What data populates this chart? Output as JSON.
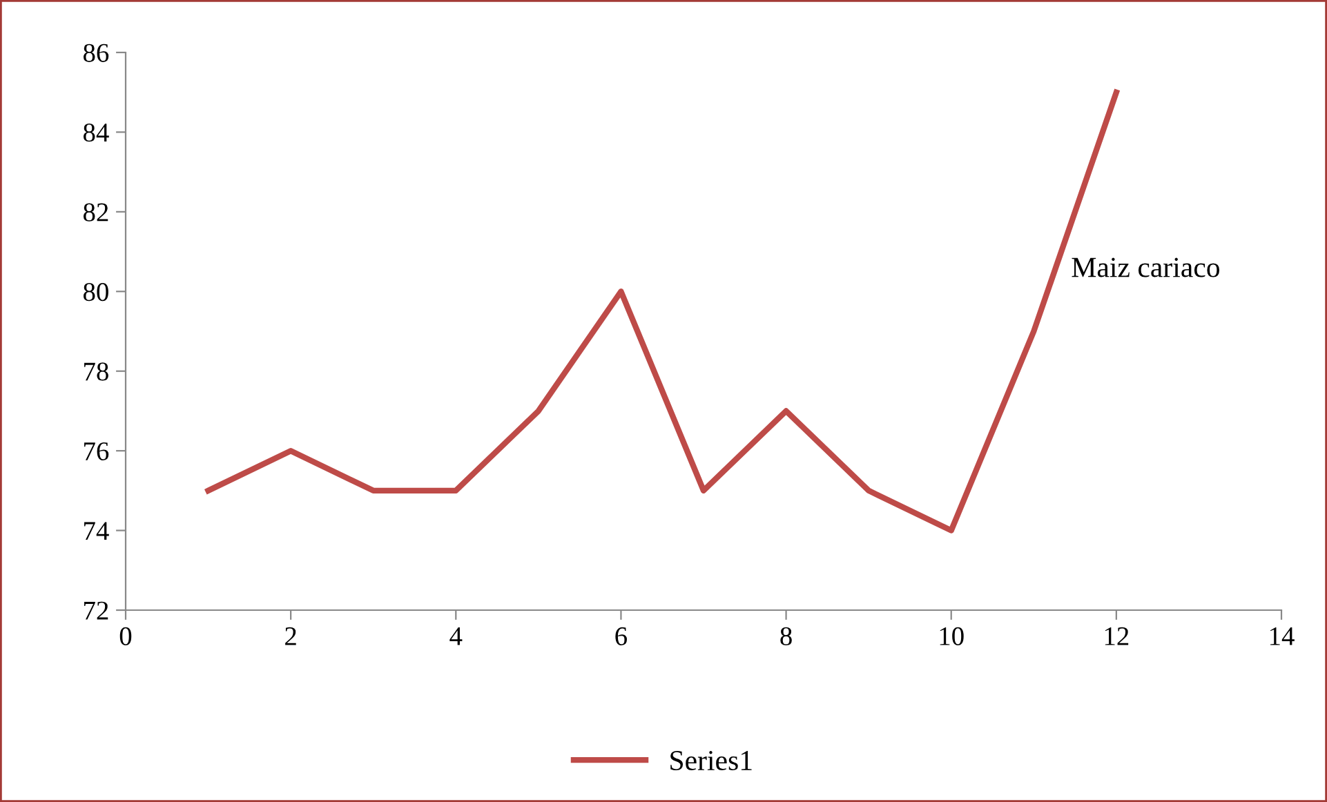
{
  "chart_data": {
    "type": "line",
    "x": [
      1,
      2,
      3,
      4,
      5,
      6,
      7,
      8,
      9,
      10,
      11,
      12
    ],
    "series": [
      {
        "name": "Series1",
        "color": "#be4b48",
        "values": [
          75,
          76,
          75,
          75,
          77,
          80,
          75,
          77,
          75,
          74,
          79,
          85
        ]
      }
    ],
    "xlim": [
      0,
      14
    ],
    "xticks": [
      0,
      2,
      4,
      6,
      8,
      10,
      12,
      14
    ],
    "ylim": [
      72,
      86
    ],
    "yticks": [
      72,
      74,
      76,
      78,
      80,
      82,
      84,
      86
    ],
    "annotations": [
      "Maiz cariaco"
    ],
    "grid": false,
    "legend": "bottom",
    "marker": "none",
    "line_style": "solid"
  }
}
